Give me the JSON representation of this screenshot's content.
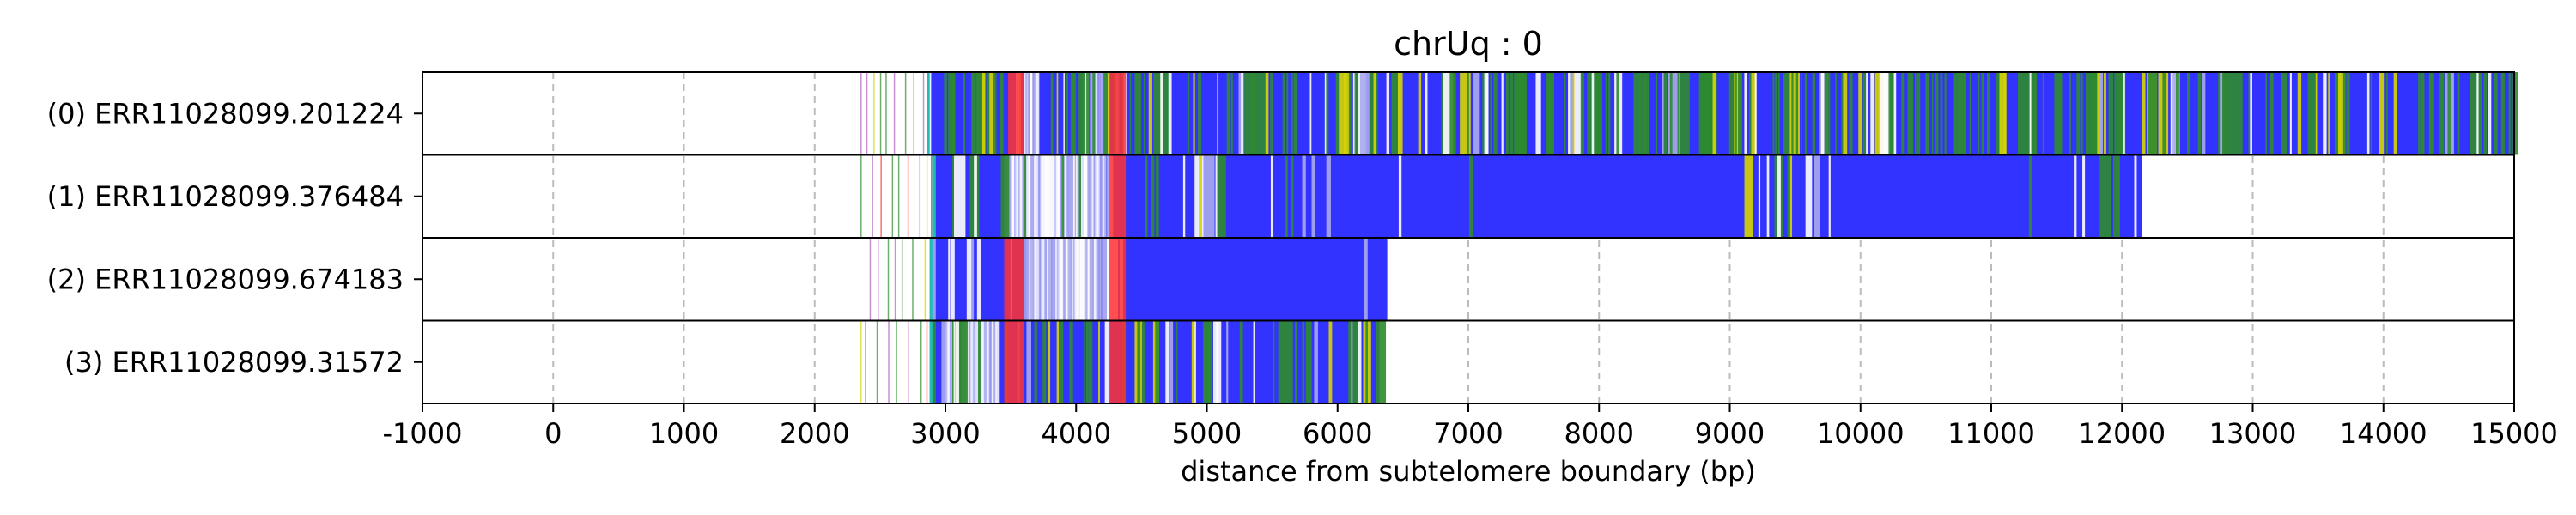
{
  "chart_data": {
    "type": "bar",
    "title": "chrUq : 0",
    "xlabel": "distance from subtelomere boundary (bp)",
    "ylabel": "",
    "xlim": [
      -1000,
      15000
    ],
    "xticks": [
      "-1000",
      "0",
      "1000",
      "2000",
      "3000",
      "4000",
      "5000",
      "6000",
      "7000",
      "8000",
      "9000",
      "10000",
      "11000",
      "12000",
      "13000",
      "14000",
      "15000"
    ],
    "grid": true,
    "colors": {
      "repeat": "#3333ff",
      "repeat_light": "#aaaaee",
      "green": "#2e8b2e",
      "yellow": "#d6d600",
      "red": "#ff3333",
      "purple": "#b060c0",
      "cyan": "#22bbbb"
    },
    "reads": [
      {
        "label": "(0) ERR11028099.201224",
        "dense_start": 2860,
        "end": 15000,
        "sparse_start": 2350,
        "mix": 0.45,
        "red_blocks": [
          [
            3480,
            3600
          ],
          [
            4250,
            4380
          ]
        ],
        "light_blocks": [
          [
            3600,
            3700
          ],
          [
            4050,
            4250
          ]
        ],
        "blue_blocks": [
          [
            12000,
            12150
          ]
        ]
      },
      {
        "label": "(1) ERR11028099.376484",
        "dense_start": 2900,
        "end": 12150,
        "sparse_start": 2350,
        "mix": 0.1,
        "red_blocks": [
          [
            4250,
            4380
          ]
        ],
        "light_blocks": [
          [
            3450,
            3650
          ],
          [
            3650,
            4250
          ]
        ],
        "blue_blocks": [
          [
            6200,
            9000
          ],
          [
            10000,
            11500
          ]
        ]
      },
      {
        "label": "(2) ERR11028099.674183",
        "dense_start": 2880,
        "end": 6380,
        "sparse_start": 2420,
        "mix": 0.03,
        "red_blocks": [
          [
            3450,
            3600
          ],
          [
            4250,
            4380
          ]
        ],
        "light_blocks": [
          [
            3600,
            4250
          ]
        ],
        "blue_blocks": [
          [
            4400,
            6380
          ]
        ]
      },
      {
        "label": "(3) ERR11028099.31572",
        "dense_start": 2880,
        "end": 6320,
        "sparse_start": 2350,
        "mix": 0.35,
        "red_blocks": [
          [
            3450,
            3600
          ],
          [
            4250,
            4380
          ]
        ],
        "light_blocks": [
          [
            3000,
            3400
          ]
        ],
        "blue_blocks": []
      }
    ]
  }
}
